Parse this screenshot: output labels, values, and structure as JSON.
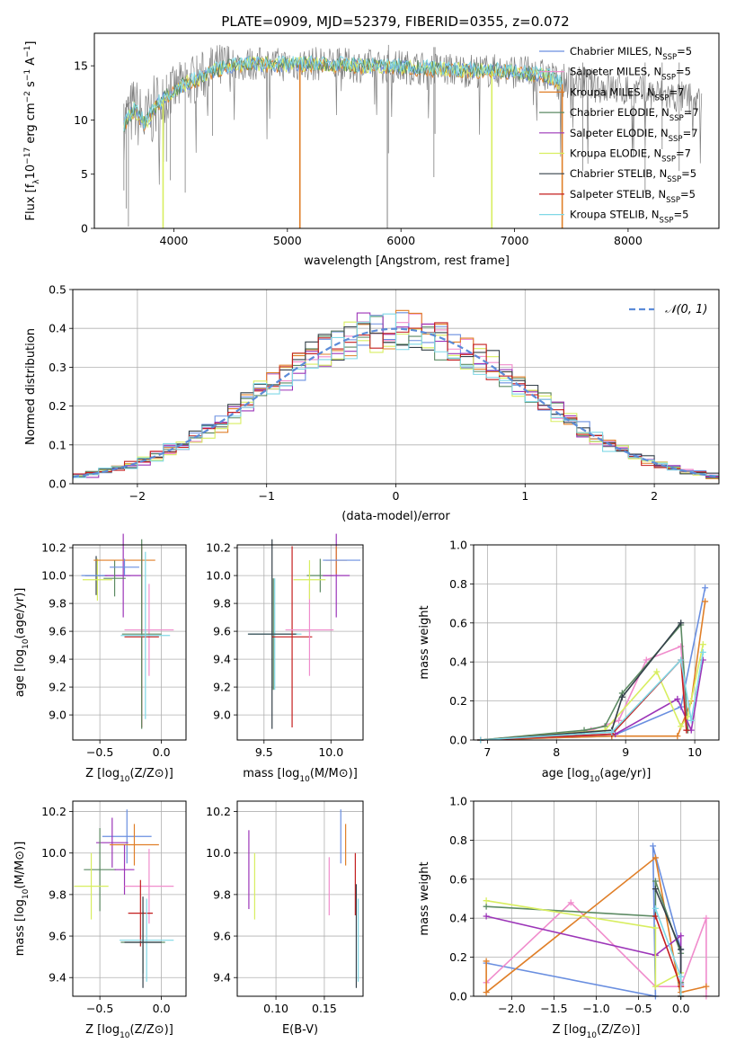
{
  "title": "PLATE=0909, MJD=52379, FIBERID=0355, z=0.072",
  "model_colors": [
    "#6a8fe0",
    "#f08ccc",
    "#e07f28",
    "#5c8a63",
    "#9c35b8",
    "#d8ee60",
    "#34404a",
    "#c41e1e",
    "#7fd8e6"
  ],
  "chart_data": [
    {
      "id": "spectrum",
      "type": "line",
      "xlabel": "wavelength [Angstrom, rest frame]",
      "ylabel": "Flux [f_λ10^-17 erg cm^-2 s^-1 A^-1]",
      "xlim": [
        3300,
        8800
      ],
      "ylim": [
        0,
        18
      ],
      "xticks": [
        "4000",
        "5000",
        "6000",
        "7000",
        "8000"
      ],
      "xtick_values": [
        4000,
        5000,
        6000,
        7000,
        8000
      ],
      "yticks": [
        "0",
        "5",
        "10",
        "15"
      ],
      "ytick_values": [
        0,
        5,
        10,
        15
      ],
      "grid": false,
      "legend_position": "right",
      "data_color": "#808080",
      "series": [
        {
          "name": "Chabrier MILES, N_SSP=5"
        },
        {
          "name": "Salpeter MILES, N_SSP=5"
        },
        {
          "name": "Kroupa MILES, N_SSP=7"
        },
        {
          "name": "Chabrier ELODIE, N_SSP=7"
        },
        {
          "name": "Salpeter ELODIE, N_SSP=7"
        },
        {
          "name": "Kroupa ELODIE, N_SSP=7"
        },
        {
          "name": "Chabrier STELIB, N_SSP=5"
        },
        {
          "name": "Salpeter STELIB, N_SSP=5"
        },
        {
          "name": "Kroupa STELIB, N_SSP=5"
        }
      ],
      "continuum": {
        "x": [
          3560,
          3650,
          3750,
          3850,
          3950,
          4050,
          4150,
          4250,
          4350,
          4500,
          4700,
          5000,
          5300,
          5600,
          6000,
          6500,
          7000,
          7300,
          7420
        ],
        "y": [
          9.5,
          11.0,
          9.6,
          11.4,
          12.3,
          13.0,
          13.6,
          14.0,
          14.6,
          15.0,
          15.2,
          15.1,
          15.2,
          15.0,
          14.9,
          14.6,
          14.5,
          14.0,
          13.3
        ]
      },
      "model_dropouts": [
        {
          "x": 3905,
          "color": "#d8ee60"
        },
        {
          "x": 5110,
          "color": "#e07f28"
        },
        {
          "x": 6800,
          "color": "#d8ee60"
        },
        {
          "x": 7420,
          "color": "#e07f28"
        }
      ]
    },
    {
      "id": "residuals",
      "type": "line",
      "xlabel": "(data-model)/error",
      "ylabel": "Normed distribution",
      "xlim": [
        -2.5,
        2.5
      ],
      "ylim": [
        0,
        0.5
      ],
      "xticks": [
        "−2",
        "−1",
        "0",
        "1",
        "2"
      ],
      "xtick_values": [
        -2,
        -1,
        0,
        1,
        2
      ],
      "yticks": [
        "0.0",
        "0.1",
        "0.2",
        "0.3",
        "0.4",
        "0.5"
      ],
      "ytick_values": [
        0,
        0.1,
        0.2,
        0.3,
        0.4,
        0.5
      ],
      "grid": true,
      "legend": "𝒩(0, 1)",
      "legend_position": "top-right",
      "gauss_color": "#5b8bd8",
      "bin_width": 0.1
    },
    {
      "id": "z_age",
      "type": "scatter",
      "xlabel": "Z [log10(Z/Z⊙)]",
      "ylabel": "age  [log10(age/yr)]",
      "xlim": [
        -0.72,
        0.2
      ],
      "ylim": [
        8.82,
        10.22
      ],
      "xticks": [
        "−0.5",
        "0.0"
      ],
      "xtick_values": [
        -0.5,
        0.0
      ],
      "yticks": [
        "9.0",
        "9.2",
        "9.4",
        "9.6",
        "9.8",
        "10.0",
        "10.2"
      ],
      "ytick_values": [
        9.0,
        9.2,
        9.4,
        9.6,
        9.8,
        10.0,
        10.2
      ],
      "grid": true,
      "errorbars": [
        {
          "c": 6,
          "x": -0.53,
          "xerr": 0.09,
          "y": 10.0,
          "yerr": 0.14
        },
        {
          "c": 5,
          "x": -0.52,
          "xerr": 0.12,
          "y": 9.97,
          "yerr": 0.15
        },
        {
          "c": 0,
          "x": -0.45,
          "xerr": 0.2,
          "y": 10.0,
          "yerr": 0.0
        },
        {
          "c": 4,
          "x": -0.31,
          "xerr": 0.15,
          "y": 10.0,
          "yerr": 0.3
        },
        {
          "c": 3,
          "x": -0.38,
          "xerr": 0.09,
          "y": 9.98,
          "yerr": 0.13
        },
        {
          "c": 2,
          "x": -0.3,
          "xerr": 0.25,
          "y": 10.11,
          "yerr": 0.0
        },
        {
          "c": 0,
          "x": -0.3,
          "xerr": 0.12,
          "y": 10.06,
          "yerr": 0.06
        },
        {
          "c": 1,
          "x": -0.1,
          "xerr": 0.2,
          "y": 9.61,
          "yerr": 0.33
        },
        {
          "c": 7,
          "x": -0.16,
          "xerr": 0.14,
          "y": 9.56,
          "yerr": 0.65
        },
        {
          "c": 3,
          "x": -0.16,
          "xerr": 0.16,
          "y": 9.58,
          "yerr": 0.68
        },
        {
          "c": 8,
          "x": -0.13,
          "xerr": 0.2,
          "y": 9.57,
          "yerr": 0.6
        }
      ]
    },
    {
      "id": "mass_age",
      "type": "scatter",
      "xlabel": "mass [log10(M/M⊙)]",
      "ylabel": "",
      "xlim": [
        9.3,
        10.24
      ],
      "ylim": [
        8.82,
        10.22
      ],
      "xticks": [
        "9.5",
        "10.0"
      ],
      "xtick_values": [
        9.5,
        10.0
      ],
      "yticks": [
        "9.0",
        "9.2",
        "9.4",
        "9.6",
        "9.8",
        "10.0",
        "10.2"
      ],
      "ytick_values": [
        9.0,
        9.2,
        9.4,
        9.6,
        9.8,
        10.0,
        10.2
      ],
      "grid": true,
      "errorbars": [
        {
          "c": 3,
          "x": 9.57,
          "xerr": 0.18,
          "y": 9.58,
          "yerr": 0.4
        },
        {
          "c": 8,
          "x": 9.58,
          "xerr": 0.2,
          "y": 9.58,
          "yerr": 0.4
        },
        {
          "c": 6,
          "x": 9.56,
          "xerr": 0.18,
          "y": 9.58,
          "yerr": 0.68
        },
        {
          "c": 7,
          "x": 9.71,
          "xerr": 0.15,
          "y": 9.56,
          "yerr": 0.65
        },
        {
          "c": 1,
          "x": 9.84,
          "xerr": 0.18,
          "y": 9.61,
          "yerr": 0.33
        },
        {
          "c": 3,
          "x": 9.92,
          "xerr": 0.1,
          "y": 10.0,
          "yerr": 0.12
        },
        {
          "c": 5,
          "x": 9.84,
          "xerr": 0.12,
          "y": 9.97,
          "yerr": 0.14
        },
        {
          "c": 4,
          "x": 10.04,
          "xerr": 0.1,
          "y": 10.0,
          "yerr": 0.3
        },
        {
          "c": 2,
          "x": 10.04,
          "xerr": 0.08,
          "y": 10.11,
          "yerr": 0.1
        },
        {
          "c": 0,
          "x": 10.08,
          "xerr": 0.14,
          "y": 10.11,
          "yerr": 0.0
        }
      ]
    },
    {
      "id": "weight_age",
      "type": "line",
      "xlabel": "age  [log10(age/yr)]",
      "ylabel": "mass weight",
      "xlim": [
        6.8,
        10.35
      ],
      "ylim": [
        0,
        1
      ],
      "xticks": [
        "7",
        "8",
        "9",
        "10"
      ],
      "xtick_values": [
        7,
        8,
        9,
        10
      ],
      "yticks": [
        "0.0",
        "0.2",
        "0.4",
        "0.6",
        "0.8",
        "1.0"
      ],
      "ytick_values": [
        0,
        0.2,
        0.4,
        0.6,
        0.8,
        1.0
      ],
      "grid": true,
      "series": [
        {
          "c": 0,
          "x": [
            6.9,
            8.8,
            9.8,
            10.15
          ],
          "y": [
            0.0,
            0.02,
            0.17,
            0.78
          ]
        },
        {
          "c": 1,
          "x": [
            6.9,
            8.5,
            8.9,
            9.3,
            9.8,
            9.9
          ],
          "y": [
            0.0,
            0.05,
            0.1,
            0.41,
            0.48,
            0.05
          ]
        },
        {
          "c": 2,
          "x": [
            6.9,
            8.8,
            9.75,
            9.95,
            10.15
          ],
          "y": [
            0.0,
            0.02,
            0.02,
            0.2,
            0.71
          ]
        },
        {
          "c": 3,
          "x": [
            6.9,
            8.4,
            8.7,
            8.95,
            9.8,
            9.9
          ],
          "y": [
            0.0,
            0.05,
            0.07,
            0.24,
            0.59,
            0.05
          ]
        },
        {
          "c": 4,
          "x": [
            6.9,
            8.85,
            9.75,
            9.95,
            10.12
          ],
          "y": [
            0.0,
            0.03,
            0.21,
            0.05,
            0.41
          ]
        },
        {
          "c": 5,
          "x": [
            6.9,
            8.7,
            9.45,
            9.8,
            9.9,
            10.12
          ],
          "y": [
            0.0,
            0.05,
            0.35,
            0.07,
            0.12,
            0.49
          ]
        },
        {
          "c": 6,
          "x": [
            6.9,
            8.8,
            8.95,
            9.8
          ],
          "y": [
            0.0,
            0.05,
            0.22,
            0.6
          ]
        },
        {
          "c": 7,
          "x": [
            6.9,
            8.8,
            9.8,
            9.88
          ],
          "y": [
            0.0,
            0.03,
            0.41,
            0.05
          ]
        },
        {
          "c": 8,
          "x": [
            6.9,
            8.8,
            9.8,
            9.95,
            10.12
          ],
          "y": [
            0.0,
            0.04,
            0.41,
            0.1,
            0.45
          ]
        }
      ]
    },
    {
      "id": "z_mass",
      "type": "scatter",
      "xlabel": "Z [log10(Z/Z⊙)]",
      "ylabel": "mass [log10(M/M⊙)]",
      "xlim": [
        -0.72,
        0.2
      ],
      "ylim": [
        9.31,
        10.25
      ],
      "xticks": [
        "−0.5",
        "0.0"
      ],
      "xtick_values": [
        -0.5,
        0.0
      ],
      "yticks": [
        "9.4",
        "9.6",
        "9.8",
        "10.0",
        "10.2"
      ],
      "ytick_values": [
        9.4,
        9.6,
        9.8,
        10.0,
        10.2
      ],
      "grid": true,
      "errorbars": [
        {
          "c": 0,
          "x": -0.28,
          "xerr": 0.2,
          "y": 10.08,
          "yerr": 0.13
        },
        {
          "c": 4,
          "x": -0.4,
          "xerr": 0.13,
          "y": 10.05,
          "yerr": 0.12
        },
        {
          "c": 2,
          "x": -0.22,
          "xerr": 0.2,
          "y": 10.04,
          "yerr": 0.1
        },
        {
          "c": 3,
          "x": -0.5,
          "xerr": 0.13,
          "y": 9.92,
          "yerr": 0.2
        },
        {
          "c": 5,
          "x": -0.57,
          "xerr": 0.14,
          "y": 9.84,
          "yerr": 0.16
        },
        {
          "c": 4,
          "x": -0.3,
          "xerr": 0.08,
          "y": 9.92,
          "yerr": 0.12
        },
        {
          "c": 1,
          "x": -0.1,
          "xerr": 0.2,
          "y": 9.84,
          "yerr": 0.18
        },
        {
          "c": 7,
          "x": -0.17,
          "xerr": 0.1,
          "y": 9.71,
          "yerr": 0.16
        },
        {
          "c": 3,
          "x": -0.15,
          "xerr": 0.18,
          "y": 9.57,
          "yerr": 0.15
        },
        {
          "c": 8,
          "x": -0.12,
          "xerr": 0.22,
          "y": 9.58,
          "yerr": 0.2
        },
        {
          "c": 6,
          "x": -0.15,
          "xerr": 0.15,
          "y": 9.57,
          "yerr": 0.22
        }
      ]
    },
    {
      "id": "ebv_mass",
      "type": "scatter",
      "xlabel": "E(B-V)",
      "ylabel": "",
      "xlim": [
        0.06,
        0.19
      ],
      "ylim": [
        9.31,
        10.25
      ],
      "xticks": [
        "0.10",
        "0.15"
      ],
      "xtick_values": [
        0.1,
        0.15
      ],
      "yticks": [
        "9.4",
        "9.6",
        "9.8",
        "10.0",
        "10.2"
      ],
      "ytick_values": [
        9.4,
        9.6,
        9.8,
        10.0,
        10.2
      ],
      "grid": true,
      "errorbars": [
        {
          "c": 4,
          "x": 0.072,
          "xerr": 0,
          "y": 9.92,
          "yerr": 0.19
        },
        {
          "c": 5,
          "x": 0.078,
          "xerr": 0,
          "y": 9.84,
          "yerr": 0.16
        },
        {
          "c": 1,
          "x": 0.155,
          "xerr": 0,
          "y": 9.84,
          "yerr": 0.14
        },
        {
          "c": 0,
          "x": 0.167,
          "xerr": 0,
          "y": 10.08,
          "yerr": 0.13
        },
        {
          "c": 2,
          "x": 0.172,
          "xerr": 0,
          "y": 10.04,
          "yerr": 0.1
        },
        {
          "c": 7,
          "x": 0.182,
          "xerr": 0,
          "y": 9.85,
          "yerr": 0.15
        },
        {
          "c": 6,
          "x": 0.183,
          "xerr": 0,
          "y": 9.6,
          "yerr": 0.25
        },
        {
          "c": 8,
          "x": 0.185,
          "xerr": 0,
          "y": 9.58,
          "yerr": 0.2
        }
      ]
    },
    {
      "id": "weight_z",
      "type": "line",
      "xlabel": "Z [log10(Z/Z⊙)]",
      "ylabel": "mass weight",
      "xlim": [
        -2.45,
        0.45
      ],
      "ylim": [
        0,
        1
      ],
      "xticks": [
        "−2.0",
        "−1.5",
        "−1.0",
        "−0.5",
        "0.0"
      ],
      "xtick_values": [
        -2,
        -1.5,
        -1,
        -0.5,
        0
      ],
      "yticks": [
        "0.0",
        "0.2",
        "0.4",
        "0.6",
        "0.8",
        "1.0"
      ],
      "ytick_values": [
        0,
        0.2,
        0.4,
        0.6,
        0.8,
        1.0
      ],
      "grid": true,
      "series": [
        {
          "c": 0,
          "x": [
            -2.3,
            -0.3,
            -0.33,
            0.0,
            0.0
          ],
          "y": [
            0.17,
            0.0,
            0.77,
            0.24,
            0.06
          ]
        },
        {
          "c": 1,
          "x": [
            -2.3,
            -1.3,
            -0.3,
            0.0,
            0.3,
            0.3
          ],
          "y": [
            0.07,
            0.48,
            0.05,
            0.05,
            0.4,
            0.0
          ]
        },
        {
          "c": 2,
          "x": [
            -2.3,
            -2.3,
            -0.3,
            0.0,
            0.0,
            0.3
          ],
          "y": [
            0.18,
            0.02,
            0.71,
            0.0,
            0.02,
            0.05
          ]
        },
        {
          "c": 3,
          "x": [
            -2.3,
            -0.3,
            -0.3,
            0.0,
            0.0
          ],
          "y": [
            0.46,
            0.41,
            0.59,
            0.22,
            0.07
          ]
        },
        {
          "c": 4,
          "x": [
            -2.3,
            -0.3,
            0.0,
            0.0
          ],
          "y": [
            0.41,
            0.21,
            0.31,
            0.0
          ]
        },
        {
          "c": 5,
          "x": [
            -2.3,
            -0.3,
            -0.3,
            0.0,
            0.0
          ],
          "y": [
            0.49,
            0.35,
            0.05,
            0.12,
            0.0
          ]
        },
        {
          "c": 6,
          "x": [
            -0.3,
            0.0,
            0.0
          ],
          "y": [
            0.55,
            0.24,
            0.0
          ]
        },
        {
          "c": 7,
          "x": [
            -0.3,
            0.0,
            0.0
          ],
          "y": [
            0.41,
            0.05,
            0.0
          ]
        },
        {
          "c": 8,
          "x": [
            -0.3,
            0.0,
            0.0
          ],
          "y": [
            0.45,
            0.1,
            0.0
          ]
        }
      ]
    }
  ]
}
